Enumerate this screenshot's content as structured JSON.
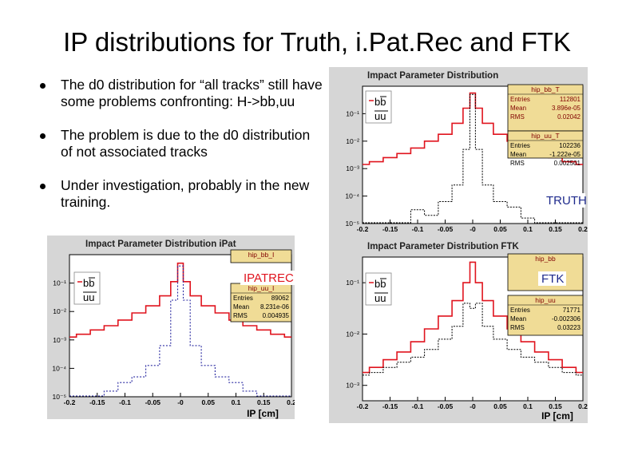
{
  "slide": {
    "title": "IP distributions for Truth, i.Pat.Rec and FTK",
    "bullets": [
      "The d0 distribution for “all tracks” still have some problems confronting: H->bb,uu",
      "The problem is due to the d0 distribution of not associated tracks",
      "Under investigation, probably in the new training."
    ]
  },
  "colors": {
    "panel_bg": "#d6d6d6",
    "frame_bg": "#ffffff",
    "stat_box": "#f0dc96",
    "bb_line": "#e0141e",
    "uu_line": "#2828a0",
    "truth_uu_line": "#000000",
    "label_blue": "#1e2a8c"
  },
  "chart_data": [
    {
      "id": "truth",
      "type": "line",
      "title": "Impact Parameter Distribution",
      "xlabel": "",
      "tag": "TRUTH",
      "xlim": [
        -0.2,
        0.2
      ],
      "ylim_exp": [
        -5,
        0
      ],
      "x_ticks": [
        "-0.2",
        "-0.15",
        "-0.1",
        "-0.05",
        "-0",
        "0.05",
        "0.1",
        "0.15",
        "0.2"
      ],
      "y_ticks": [
        "10⁻¹",
        "10⁻²",
        "10⁻³",
        "10⁻⁴",
        "10⁻⁵"
      ],
      "y_tick_exps": [
        -1,
        -2,
        -3,
        -4,
        -5
      ],
      "legend": [
        "bb",
        "uu"
      ],
      "x": [
        -0.2,
        -0.175,
        -0.15,
        -0.125,
        -0.1,
        -0.075,
        -0.05,
        -0.025,
        -0.01,
        0.0,
        0.01,
        0.025,
        0.05,
        0.075,
        0.1,
        0.125,
        0.15,
        0.175,
        0.2
      ],
      "series": [
        {
          "stats_title": "hip_bb_T",
          "style": "bb",
          "stats": [
            [
              "Entries",
              "112801"
            ],
            [
              "Mean",
              "3.896e-05"
            ],
            [
              "RMS",
              "0.02042"
            ]
          ],
          "log_values": [
            -2.85,
            -2.75,
            -2.6,
            -2.45,
            -2.25,
            -2.0,
            -1.75,
            -1.35,
            -0.8,
            -0.25,
            -0.8,
            -1.35,
            -1.75,
            -2.0,
            -2.25,
            -2.45,
            -2.6,
            -2.75,
            -2.85
          ]
        },
        {
          "stats_title": "hip_uu_T",
          "style": "truth_uu",
          "stats": [
            [
              "Entries",
              "102236"
            ],
            [
              "Mean",
              "-1.222e-05"
            ],
            [
              "RMS",
              "0.002501"
            ]
          ],
          "log_values": [
            -5.2,
            -5.2,
            -5.2,
            -5.2,
            -4.5,
            -4.7,
            -4.2,
            -3.6,
            -2.3,
            -0.3,
            -2.3,
            -3.6,
            -4.2,
            -4.4,
            -4.8,
            -5.2,
            -5.2,
            -5.2,
            -5.2
          ]
        }
      ]
    },
    {
      "id": "ipat",
      "type": "line",
      "title": "Impact Parameter Distribution iPat",
      "xlabel": "IP [cm]",
      "tag": "IPATREC",
      "xlim": [
        -0.2,
        0.2
      ],
      "ylim_exp": [
        -5,
        0
      ],
      "x_ticks": [
        "-0.2",
        "-0.15",
        "-0.1",
        "-0.05",
        "-0",
        "0.05",
        "0.1",
        "0.15",
        "0.2"
      ],
      "y_ticks": [
        "10⁻¹",
        "10⁻²",
        "10⁻³",
        "10⁻⁴",
        "10⁻⁵"
      ],
      "y_tick_exps": [
        -1,
        -2,
        -3,
        -4,
        -5
      ],
      "legend": [
        "bb",
        "uu"
      ],
      "x": [
        -0.2,
        -0.175,
        -0.15,
        -0.125,
        -0.1,
        -0.075,
        -0.05,
        -0.025,
        -0.01,
        0.0,
        0.01,
        0.025,
        0.05,
        0.075,
        0.1,
        0.125,
        0.15,
        0.175,
        0.2
      ],
      "series": [
        {
          "stats_title": "hip_bb_I",
          "style": "bb",
          "stats": [],
          "log_values": [
            -2.9,
            -2.8,
            -2.65,
            -2.5,
            -2.3,
            -2.05,
            -1.8,
            -1.45,
            -0.95,
            -0.3,
            -0.95,
            -1.45,
            -1.8,
            -2.05,
            -2.3,
            -2.5,
            -2.65,
            -2.8,
            -2.9
          ]
        },
        {
          "stats_title": "hip_uu_I",
          "style": "uu",
          "stats": [
            [
              "Entries",
              "89062"
            ],
            [
              "Mean",
              "8.231e-06"
            ],
            [
              "RMS",
              "0.004935"
            ]
          ],
          "log_values": [
            -5.2,
            -5.2,
            -5.2,
            -4.8,
            -4.5,
            -4.3,
            -3.9,
            -3.2,
            -1.6,
            -0.4,
            -1.6,
            -3.2,
            -3.9,
            -4.3,
            -4.5,
            -4.8,
            -5.2,
            -5.2,
            -5.2
          ]
        }
      ]
    },
    {
      "id": "ftk",
      "type": "line",
      "title": "Impact Parameter Distribution FTK",
      "xlabel": "IP [cm]",
      "tag": "FTK",
      "xlim": [
        -0.2,
        0.2
      ],
      "ylim_exp": [
        -3.3,
        -0.5
      ],
      "x_ticks": [
        "-0.2",
        "-0.15",
        "-0.1",
        "-0.05",
        "-0",
        "0.05",
        "0.1",
        "0.15",
        "0.2"
      ],
      "y_ticks": [
        "10⁻¹",
        "10⁻²",
        "10⁻³"
      ],
      "y_tick_exps": [
        -1,
        -2,
        -3
      ],
      "legend": [
        "bb",
        "uu"
      ],
      "x": [
        -0.2,
        -0.175,
        -0.15,
        -0.125,
        -0.1,
        -0.075,
        -0.05,
        -0.025,
        -0.01,
        0.0,
        0.01,
        0.025,
        0.05,
        0.075,
        0.1,
        0.125,
        0.15,
        0.175,
        0.2
      ],
      "series": [
        {
          "stats_title": "hip_bb",
          "style": "bb",
          "stats": [],
          "log_values": [
            -2.75,
            -2.65,
            -2.5,
            -2.35,
            -2.15,
            -1.9,
            -1.65,
            -1.35,
            -1.0,
            -0.6,
            -1.0,
            -1.35,
            -1.65,
            -1.9,
            -2.15,
            -2.35,
            -2.5,
            -2.65,
            -2.75
          ]
        },
        {
          "stats_title": "hip_uu",
          "style": "truth_uu",
          "stats": [
            [
              "Entries",
              "71771"
            ],
            [
              "Mean",
              "-0.002306"
            ],
            [
              "RMS",
              "0.03223"
            ]
          ],
          "log_values": [
            -2.8,
            -2.75,
            -2.65,
            -2.55,
            -2.45,
            -2.3,
            -2.1,
            -1.85,
            -1.4,
            -1.5,
            -1.4,
            -1.85,
            -2.1,
            -2.3,
            -2.45,
            -2.55,
            -2.65,
            -2.75,
            -2.8
          ]
        }
      ]
    }
  ]
}
